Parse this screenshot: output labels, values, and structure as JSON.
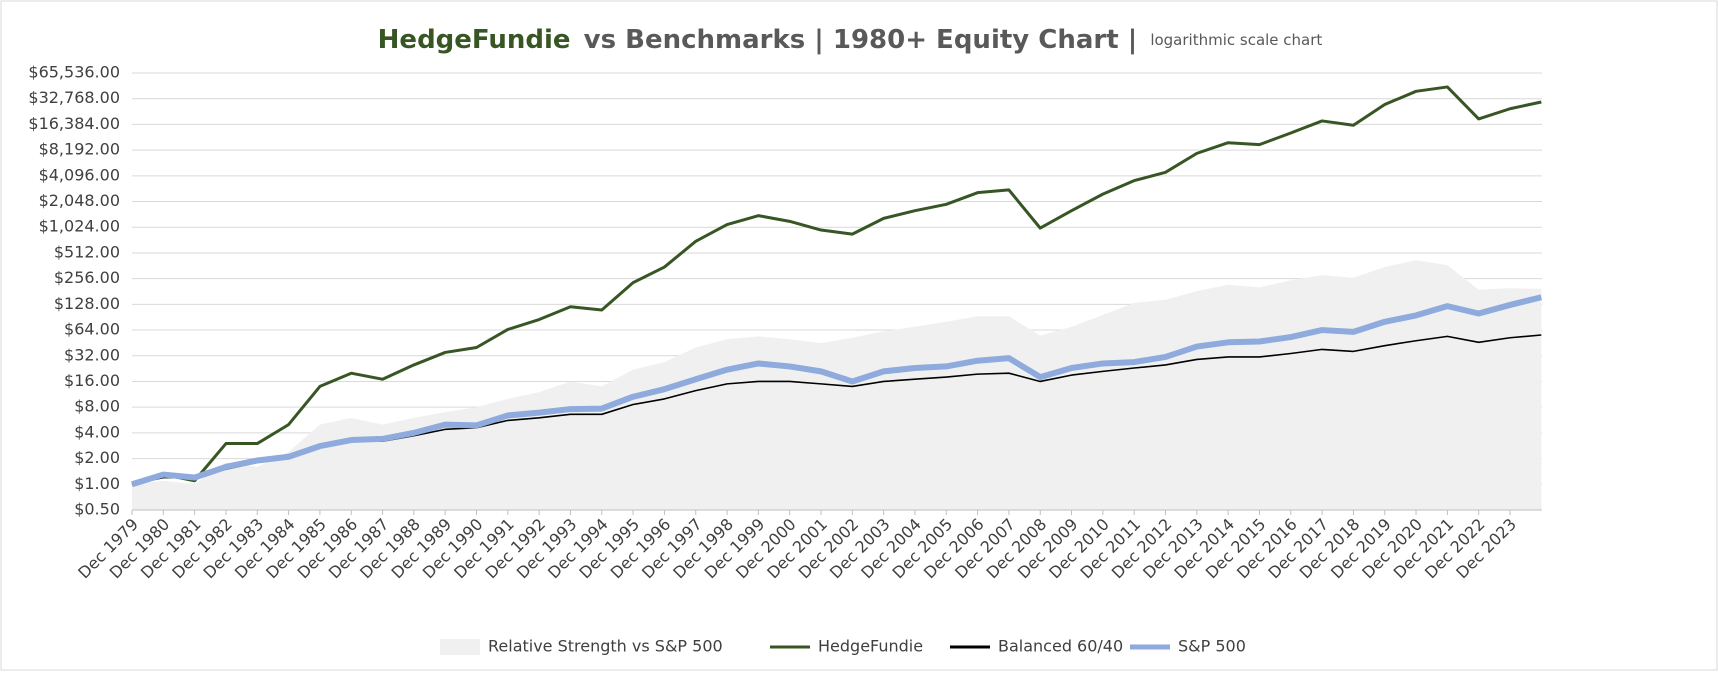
{
  "chart_data": {
    "type": "line",
    "title_highlight": "HedgeFundie",
    "title": "vs Benchmarks | 1980+ Equity Chart |",
    "subtitle": "logarithmic scale chart",
    "yscale": "log",
    "grid": true,
    "legend": "bottom",
    "ylim": [
      0.5,
      65536
    ],
    "yticks": [
      {
        "value": 0.5,
        "label": "$0.50"
      },
      {
        "value": 1,
        "label": "$1.00"
      },
      {
        "value": 2,
        "label": "$2.00"
      },
      {
        "value": 4,
        "label": "$4.00"
      },
      {
        "value": 8,
        "label": "$8.00"
      },
      {
        "value": 16,
        "label": "$16.00"
      },
      {
        "value": 32,
        "label": "$32.00"
      },
      {
        "value": 64,
        "label": "$64.00"
      },
      {
        "value": 128,
        "label": "$128.00"
      },
      {
        "value": 256,
        "label": "$256.00"
      },
      {
        "value": 512,
        "label": "$512.00"
      },
      {
        "value": 1024,
        "label": "$1,024.00"
      },
      {
        "value": 2048,
        "label": "$2,048.00"
      },
      {
        "value": 4096,
        "label": "$4,096.00"
      },
      {
        "value": 8192,
        "label": "$8,192.00"
      },
      {
        "value": 16384,
        "label": "$16,384.00"
      },
      {
        "value": 32768,
        "label": "$32,768.00"
      },
      {
        "value": 65536,
        "label": "$65,536.00"
      }
    ],
    "categories": [
      "Dec 1979",
      "Dec 1980",
      "Dec 1981",
      "Dec 1982",
      "Dec 1983",
      "Dec 1984",
      "Dec 1985",
      "Dec 1986",
      "Dec 1987",
      "Dec 1988",
      "Dec 1989",
      "Dec 1990",
      "Dec 1991",
      "Dec 1992",
      "Dec 1993",
      "Dec 1994",
      "Dec 1995",
      "Dec 1996",
      "Dec 1997",
      "Dec 1998",
      "Dec 1999",
      "Dec 2000",
      "Dec 2001",
      "Dec 2002",
      "Dec 2003",
      "Dec 2004",
      "Dec 2005",
      "Dec 2006",
      "Dec 2007",
      "Dec 2008",
      "Dec 2009",
      "Dec 2010",
      "Dec 2011",
      "Dec 2012",
      "Dec 2013",
      "Dec 2014",
      "Dec 2015",
      "Dec 2016",
      "Dec 2017",
      "Dec 2018",
      "Dec 2019",
      "Dec 2020",
      "Dec 2021",
      "Dec 2022",
      "Dec 2023",
      null
    ],
    "series": [
      {
        "name": "Relative Strength vs S&P 500",
        "kind": "area",
        "color": "#f0f0f0",
        "values": [
          1,
          1.1,
          1.0,
          1.8,
          1.6,
          2.4,
          5,
          6,
          5,
          6,
          7,
          8,
          10,
          12,
          16,
          14,
          22,
          27,
          40,
          50,
          54,
          50,
          45,
          52,
          62,
          70,
          80,
          93,
          93,
          55,
          70,
          96,
          133,
          145,
          183,
          217,
          202,
          245,
          281,
          262,
          350,
          421,
          369,
          190,
          198,
          194
        ]
      },
      {
        "name": "HedgeFundie",
        "kind": "line",
        "color": "#375623",
        "values": [
          1,
          1.3,
          1.1,
          3,
          3,
          5,
          14,
          20,
          17,
          25,
          35,
          40,
          65,
          85,
          120,
          110,
          230,
          350,
          700,
          1100,
          1400,
          1200,
          950,
          850,
          1300,
          1600,
          1900,
          2600,
          2800,
          1000,
          1600,
          2500,
          3600,
          4500,
          7500,
          10000,
          9500,
          13000,
          18000,
          16000,
          28000,
          40000,
          45000,
          19000,
          25000,
          30000
        ]
      },
      {
        "name": "Balanced 60/40",
        "kind": "line",
        "color": "#000000",
        "values": [
          1,
          1.2,
          1.2,
          1.5,
          1.8,
          2.0,
          2.7,
          3.2,
          3.2,
          3.7,
          4.4,
          4.6,
          5.6,
          6.0,
          6.6,
          6.6,
          8.6,
          10,
          12.5,
          15,
          16,
          16,
          15,
          14,
          16,
          17,
          18,
          19.5,
          20,
          16,
          19,
          21,
          23,
          25,
          29,
          31,
          31,
          34,
          38,
          36,
          42,
          48,
          54,
          46,
          52,
          56
        ]
      },
      {
        "name": "S&P 500",
        "kind": "line",
        "color": "#8faadc",
        "values": [
          1,
          1.3,
          1.2,
          1.6,
          1.9,
          2.1,
          2.8,
          3.3,
          3.4,
          4.0,
          5.0,
          4.9,
          6.4,
          6.9,
          7.6,
          7.7,
          10.6,
          13,
          17,
          22,
          26,
          24,
          21,
          16,
          21,
          23,
          24,
          28,
          30,
          18,
          23,
          26,
          27,
          31,
          41,
          46,
          47,
          53,
          64,
          61,
          80,
          95,
          122,
          100,
          126,
          155
        ]
      }
    ]
  }
}
